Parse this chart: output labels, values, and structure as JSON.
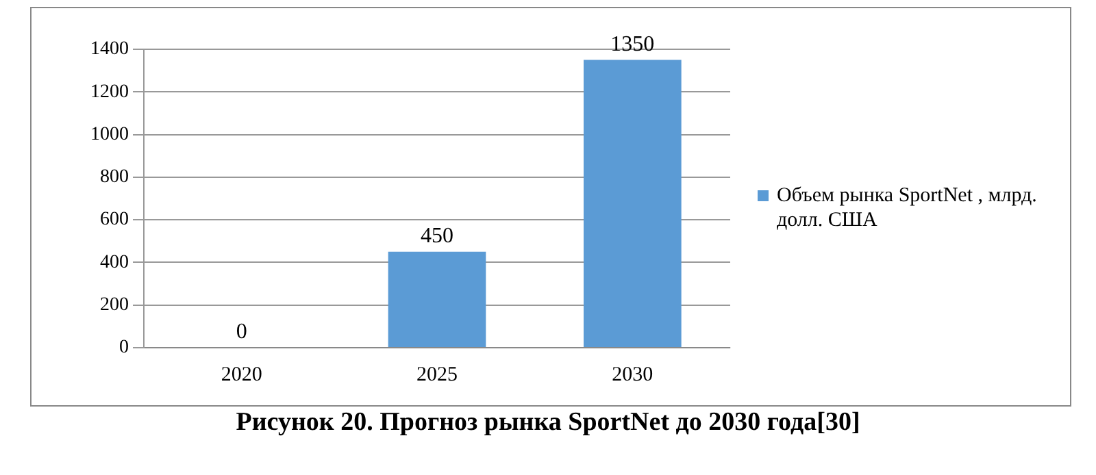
{
  "chart_data": {
    "type": "bar",
    "title": "Рисунок 20. Прогноз рынка SportNet до 2030 года[30]",
    "categories": [
      "2020",
      "2025",
      "2030"
    ],
    "series": [
      {
        "name": "Объем рынка SportNet , млрд. долл. США",
        "color": "#5b9bd5",
        "values": [
          0,
          450,
          1350
        ]
      }
    ],
    "ylim": [
      0,
      1400
    ],
    "yticks": [
      0,
      200,
      400,
      600,
      800,
      1000,
      1200,
      1400
    ],
    "grid": "y",
    "legend": "right",
    "data_labels": true
  }
}
